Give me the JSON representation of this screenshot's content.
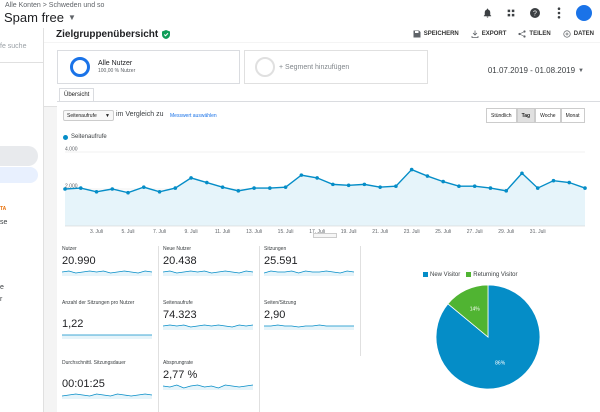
{
  "topbar": {
    "breadcrumb": "Alle Konten > Schweden und so",
    "property": "Spam free",
    "icons": [
      "notifications-icon",
      "apps-icon",
      "help-icon",
      "more-vert-icon"
    ]
  },
  "sidebar": {
    "search_placeholder": "fe suche",
    "beta": "TA",
    "items": [
      "se",
      "e",
      "r"
    ]
  },
  "page": {
    "title": "Zielgruppenübersicht",
    "actions": [
      "SPEICHERN",
      "EXPORT",
      "TEILEN",
      "DATEN"
    ]
  },
  "segments": {
    "active": {
      "name": "Alle Nutzer",
      "sub": "100,00 % Nutzer"
    },
    "add": "+ Segment hinzufügen"
  },
  "date_range": "01.07.2019 - 01.08.2019",
  "tab": "Übersicht",
  "controls": {
    "metric": "Seitenaufrufe",
    "vs": "im Vergleich zu",
    "pick": "Messwert auswählen",
    "granularity": [
      "Stündlich",
      "Tag",
      "Woche",
      "Monat"
    ],
    "active_granularity": "Tag"
  },
  "chart_data": {
    "type": "area",
    "series": [
      {
        "name": "Seitenaufrufe",
        "values": [
          2000,
          2050,
          1850,
          2000,
          1800,
          2100,
          1850,
          2050,
          2600,
          2350,
          2100,
          1900,
          2050,
          2050,
          2100,
          2750,
          2600,
          2250,
          2200,
          2250,
          2100,
          2150,
          3050,
          2700,
          2400,
          2150,
          2150,
          2050,
          1900,
          2850,
          2050,
          2450,
          2350,
          2050
        ]
      }
    ],
    "x_tick_labels": [
      "3. Juli",
      "5. Juli",
      "7. Juli",
      "9. Juli",
      "11. Juli",
      "13. Juli",
      "15. Juli",
      "17. Juli",
      "19. Juli",
      "21. Juli",
      "23. Juli",
      "25. Juli",
      "27. Juli",
      "29. Juli",
      "31. Juli"
    ],
    "y_tick_labels": [
      "4.000",
      "2.000"
    ],
    "ylim": [
      0,
      4000
    ],
    "color": "#058dc7",
    "fill": "#e6f4fa"
  },
  "scorecards": [
    {
      "label": "Nutzer",
      "value": "20.990"
    },
    {
      "label": "Neue Nutzer",
      "value": "20.438"
    },
    {
      "label": "Sitzungen",
      "value": "25.591"
    },
    {
      "label": "Anzahl der Sitzungen pro Nutzer",
      "value": "1,22"
    },
    {
      "label": "Seitenaufrufe",
      "value": "74.323"
    },
    {
      "label": "Seiten/Sitzung",
      "value": "2,90"
    },
    {
      "label": "Durchschnittl. Sitzungsdauer",
      "value": "00:01:25"
    },
    {
      "label": "Absprungrate",
      "value": "2,77 %"
    }
  ],
  "pie": {
    "type": "pie",
    "labels": [
      "New Visitor",
      "Returning Visitor"
    ],
    "values": [
      86,
      14
    ],
    "value_labels": [
      "86%",
      "14%"
    ],
    "colors": [
      "#058dc7",
      "#50b432"
    ]
  }
}
